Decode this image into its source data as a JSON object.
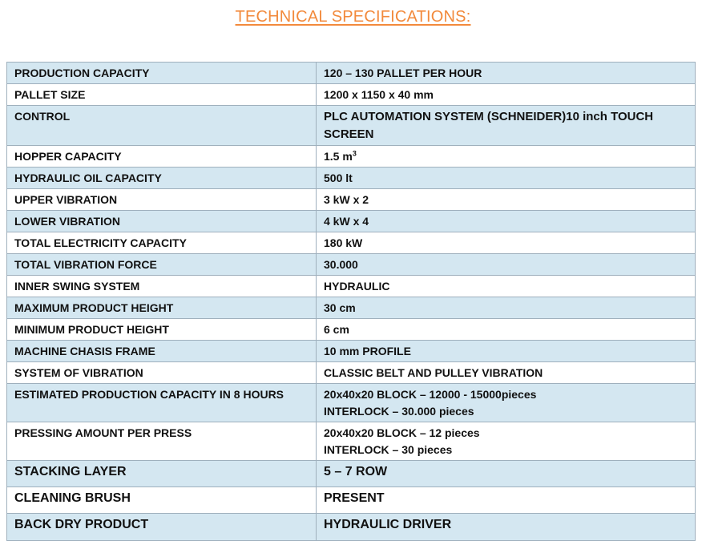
{
  "page": {
    "title": "TECHNICAL SPECIFICATIONS:",
    "title_color": "#f28a3c",
    "row_blue": "#d4e7f1",
    "row_white": "#ffffff",
    "border_color": "#9fb0bd"
  },
  "specs": [
    {
      "label": "PRODUCTION CAPACITY",
      "value": "120 – 130 PALLET PER HOUR"
    },
    {
      "label": "PALLET SIZE",
      "value": "1200 x 1150 x 40 mm"
    },
    {
      "label": "CONTROL",
      "value": "PLC AUTOMATION SYSTEM (SCHNEIDER)10 inch TOUCH SCREEN"
    },
    {
      "label": "HOPPER CAPACITY",
      "value": "1.5 m",
      "value_sup": "3"
    },
    {
      "label": "HYDRAULIC OIL CAPACITY",
      "value": "500 lt"
    },
    {
      "label": "UPPER VIBRATION",
      "value": "3 kW x 2"
    },
    {
      "label": "LOWER VIBRATION",
      "value": "4 kW x 4"
    },
    {
      "label": "TOTAL ELECTRICITY CAPACITY",
      "value": "180 kW"
    },
    {
      "label": "TOTAL VIBRATION FORCE",
      "value": "30.000"
    },
    {
      "label": "INNER SWING SYSTEM",
      "value": "HYDRAULIC"
    },
    {
      "label": "MAXIMUM PRODUCT HEIGHT",
      "value": "30 cm"
    },
    {
      "label": "MINIMUM PRODUCT HEIGHT",
      "value": "6 cm"
    },
    {
      "label": "MACHINE CHASIS FRAME",
      "value": "10 mm PROFILE"
    },
    {
      "label": "SYSTEM OF VIBRATION",
      "value": "CLASSIC BELT AND PULLEY VIBRATION"
    },
    {
      "label": "ESTIMATED PRODUCTION  CAPACITY IN 8 HOURS",
      "value_lines": [
        "20x40x20 BLOCK – 12000 - 15000pieces",
        "INTERLOCK – 30.000 pieces"
      ]
    },
    {
      "label": "PRESSING AMOUNT PER PRESS",
      "value_lines": [
        "20x40x20 BLOCK – 12 pieces",
        "INTERLOCK – 30 pieces"
      ]
    },
    {
      "label": "STACKING LAYER",
      "value": "5 – 7 ROW"
    },
    {
      "label": "CLEANING BRUSH",
      "value": "PRESENT"
    },
    {
      "label": "BACK DRY PRODUCT",
      "value": "HYDRAULIC DRIVER"
    }
  ]
}
